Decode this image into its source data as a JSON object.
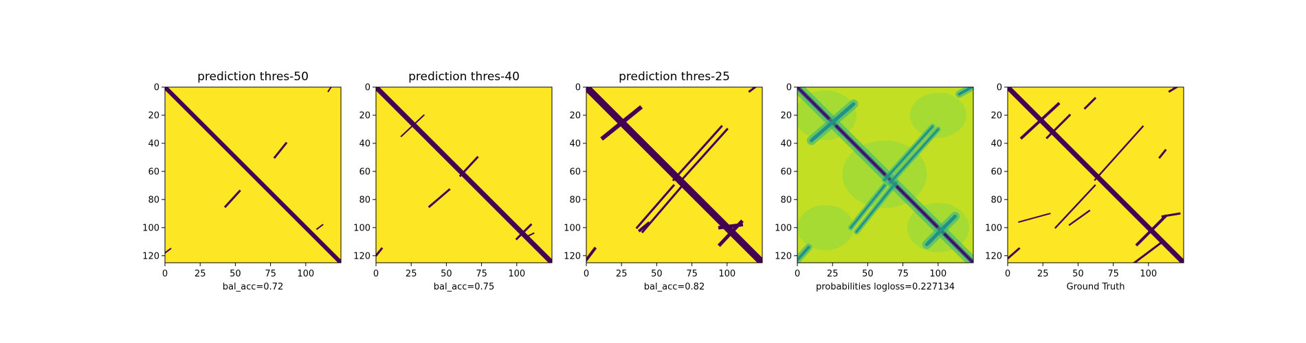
{
  "chart_data": [
    {
      "type": "heatmap",
      "title": "prediction thres-50",
      "xlabel": "bal_acc=0.72",
      "ylabel": "",
      "xlim": [
        0,
        125
      ],
      "ylim": [
        125,
        0
      ],
      "xticks": [
        "0",
        "25",
        "50",
        "75",
        "100"
      ],
      "yticks": [
        "0",
        "20",
        "40",
        "60",
        "80",
        "100",
        "120"
      ],
      "colors": {
        "low": "#440154",
        "high": "#fde725"
      },
      "features": [
        {
          "kind": "diagonal",
          "from": [
            0,
            0
          ],
          "to": [
            124,
            124
          ],
          "width": 3
        },
        {
          "kind": "segment",
          "from": [
            78,
            50
          ],
          "to": [
            86,
            40
          ],
          "width": 1.5
        },
        {
          "kind": "segment",
          "from": [
            43,
            85
          ],
          "to": [
            53,
            74
          ],
          "width": 1.5
        },
        {
          "kind": "segment",
          "from": [
            108,
            101
          ],
          "to": [
            112,
            98
          ],
          "width": 1
        },
        {
          "kind": "segment",
          "from": [
            0,
            118
          ],
          "to": [
            4,
            115
          ],
          "width": 1
        },
        {
          "kind": "segment",
          "from": [
            116,
            3
          ],
          "to": [
            118,
            0
          ],
          "width": 1
        }
      ]
    },
    {
      "type": "heatmap",
      "title": "prediction thres-40",
      "xlabel": "bal_acc=0.75",
      "ylabel": "",
      "xlim": [
        0,
        125
      ],
      "ylim": [
        125,
        0
      ],
      "xticks": [
        "0",
        "25",
        "50",
        "75",
        "100"
      ],
      "yticks": [
        "0",
        "20",
        "40",
        "60",
        "80",
        "100",
        "120"
      ],
      "colors": {
        "low": "#440154",
        "high": "#fde725"
      },
      "features": [
        {
          "kind": "diagonal",
          "from": [
            0,
            0
          ],
          "to": [
            124,
            124
          ],
          "width": 3.5
        },
        {
          "kind": "segment",
          "from": [
            60,
            63
          ],
          "to": [
            72,
            50
          ],
          "width": 1.5
        },
        {
          "kind": "segment",
          "from": [
            38,
            85
          ],
          "to": [
            52,
            73
          ],
          "width": 1.5
        },
        {
          "kind": "segment",
          "from": [
            18,
            35
          ],
          "to": [
            34,
            20
          ],
          "width": 1
        },
        {
          "kind": "segment",
          "from": [
            100,
            108
          ],
          "to": [
            110,
            98
          ],
          "width": 1.5
        },
        {
          "kind": "segment",
          "from": [
            0,
            120
          ],
          "to": [
            4,
            115
          ],
          "width": 1.5
        },
        {
          "kind": "segment",
          "from": [
            108,
            106
          ],
          "to": [
            112,
            104
          ],
          "width": 1
        }
      ]
    },
    {
      "type": "heatmap",
      "title": "prediction thres-25",
      "xlabel": "bal_acc=0.82",
      "ylabel": "",
      "xlim": [
        0,
        125
      ],
      "ylim": [
        125,
        0
      ],
      "xticks": [
        "0",
        "25",
        "50",
        "75",
        "100"
      ],
      "yticks": [
        "0",
        "20",
        "40",
        "60",
        "80",
        "100",
        "120"
      ],
      "colors": {
        "low": "#440154",
        "high": "#fde725"
      },
      "features": [
        {
          "kind": "diagonal",
          "from": [
            0,
            0
          ],
          "to": [
            124,
            124
          ],
          "width": 5
        },
        {
          "kind": "segment",
          "from": [
            36,
            100
          ],
          "to": [
            62,
            70
          ],
          "width": 1.5
        },
        {
          "kind": "segment",
          "from": [
            40,
            103
          ],
          "to": [
            70,
            68
          ],
          "width": 1.5
        },
        {
          "kind": "segment",
          "from": [
            62,
            66
          ],
          "to": [
            96,
            28
          ],
          "width": 1.5
        },
        {
          "kind": "segment",
          "from": [
            66,
            68
          ],
          "to": [
            100,
            30
          ],
          "width": 1.5
        },
        {
          "kind": "segment",
          "from": [
            12,
            36
          ],
          "to": [
            38,
            15
          ],
          "width": 3
        },
        {
          "kind": "segment",
          "from": [
            95,
            100
          ],
          "to": [
            110,
            98
          ],
          "width": 2.5
        },
        {
          "kind": "segment",
          "from": [
            95,
            112
          ],
          "to": [
            110,
            96
          ],
          "width": 2.5
        },
        {
          "kind": "segment",
          "from": [
            0,
            123
          ],
          "to": [
            6,
            115
          ],
          "width": 2
        },
        {
          "kind": "segment",
          "from": [
            38,
            102
          ],
          "to": [
            44,
            97
          ],
          "width": 2
        },
        {
          "kind": "segment",
          "from": [
            116,
            3
          ],
          "to": [
            120,
            0
          ],
          "width": 1.5
        }
      ]
    },
    {
      "type": "heatmap",
      "title": "",
      "xlabel": "probabilities logloss=0.227134",
      "ylabel": "",
      "xlim": [
        0,
        125
      ],
      "ylim": [
        125,
        0
      ],
      "xticks": [
        "0",
        "25",
        "50",
        "75",
        "100"
      ],
      "yticks": [
        "0",
        "20",
        "40",
        "60",
        "80",
        "100",
        "120"
      ],
      "colors": {
        "background": "#c2df23",
        "light": "#8fd744",
        "mid": "#35b779",
        "dark": "#21918c",
        "low": "#3b528b",
        "min": "#440154"
      },
      "features": [
        {
          "kind": "diagonal",
          "from": [
            0,
            0
          ],
          "to": [
            124,
            124
          ],
          "width": 3
        },
        {
          "kind": "segment",
          "from": [
            38,
            100
          ],
          "to": [
            62,
            70
          ],
          "width": 1.5
        },
        {
          "kind": "segment",
          "from": [
            42,
            103
          ],
          "to": [
            70,
            68
          ],
          "width": 1.5
        },
        {
          "kind": "segment",
          "from": [
            62,
            66
          ],
          "to": [
            96,
            28
          ],
          "width": 1.5
        },
        {
          "kind": "segment",
          "from": [
            66,
            68
          ],
          "to": [
            100,
            30
          ],
          "width": 1.5
        },
        {
          "kind": "segment",
          "from": [
            10,
            38
          ],
          "to": [
            40,
            12
          ],
          "width": 2.5
        },
        {
          "kind": "segment",
          "from": [
            92,
            112
          ],
          "to": [
            112,
            92
          ],
          "width": 2.5
        },
        {
          "kind": "segment",
          "from": [
            0,
            123
          ],
          "to": [
            8,
            114
          ],
          "width": 2
        },
        {
          "kind": "segment",
          "from": [
            115,
            5
          ],
          "to": [
            124,
            0
          ],
          "width": 2
        }
      ]
    },
    {
      "type": "heatmap",
      "title": "",
      "xlabel": "Ground Truth",
      "ylabel": "",
      "xlim": [
        0,
        125
      ],
      "ylim": [
        125,
        0
      ],
      "xticks": [
        "0",
        "25",
        "50",
        "75",
        "100"
      ],
      "yticks": [
        "0",
        "20",
        "40",
        "60",
        "80",
        "100",
        "120"
      ],
      "colors": {
        "low": "#440154",
        "high": "#fde725"
      },
      "features": [
        {
          "kind": "diagonal",
          "from": [
            0,
            0
          ],
          "to": [
            124,
            124
          ],
          "width": 3.5
        },
        {
          "kind": "segment",
          "from": [
            34,
            100
          ],
          "to": [
            62,
            70
          ],
          "width": 1.2
        },
        {
          "kind": "segment",
          "from": [
            62,
            66
          ],
          "to": [
            96,
            28
          ],
          "width": 1.2
        },
        {
          "kind": "segment",
          "from": [
            10,
            36
          ],
          "to": [
            36,
            12
          ],
          "width": 2
        },
        {
          "kind": "segment",
          "from": [
            28,
            36
          ],
          "to": [
            44,
            20
          ],
          "width": 1.5
        },
        {
          "kind": "segment",
          "from": [
            92,
            112
          ],
          "to": [
            112,
            92
          ],
          "width": 2
        },
        {
          "kind": "segment",
          "from": [
            0,
            122
          ],
          "to": [
            8,
            115
          ],
          "width": 1.5
        },
        {
          "kind": "segment",
          "from": [
            44,
            98
          ],
          "to": [
            58,
            88
          ],
          "width": 1.2
        },
        {
          "kind": "segment",
          "from": [
            115,
            3
          ],
          "to": [
            120,
            0
          ],
          "width": 1.5
        },
        {
          "kind": "segment",
          "from": [
            90,
            125
          ],
          "to": [
            110,
            110
          ],
          "width": 1.5
        },
        {
          "kind": "segment",
          "from": [
            8,
            96
          ],
          "to": [
            30,
            90
          ],
          "width": 1
        },
        {
          "kind": "segment",
          "from": [
            55,
            15
          ],
          "to": [
            62,
            8
          ],
          "width": 1.5
        },
        {
          "kind": "segment",
          "from": [
            108,
            50
          ],
          "to": [
            112,
            45
          ],
          "width": 1.5
        },
        {
          "kind": "segment",
          "from": [
            110,
            92
          ],
          "to": [
            122,
            90
          ],
          "width": 1.5
        }
      ]
    }
  ]
}
